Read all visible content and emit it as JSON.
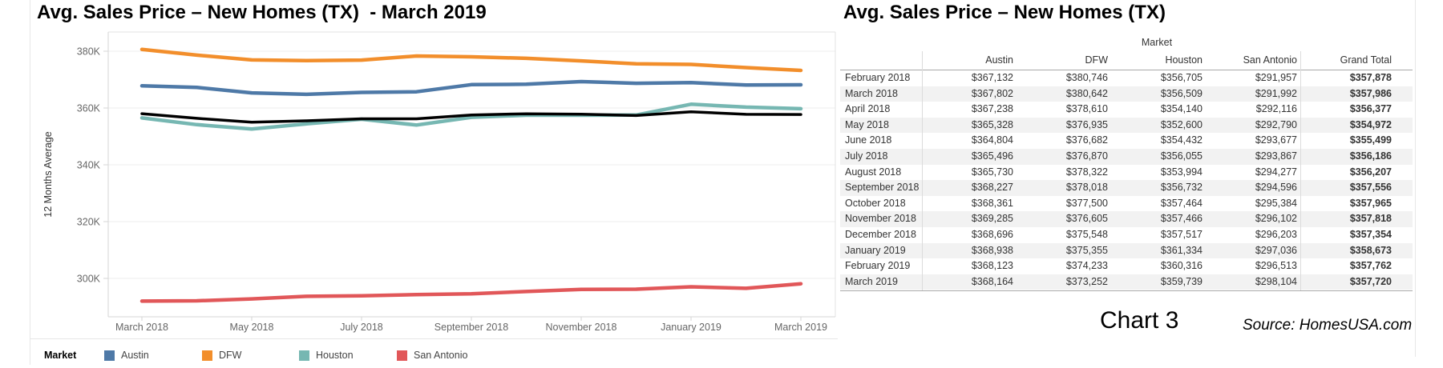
{
  "chart_data": [
    {
      "type": "line",
      "title": "Avg. Sales Price – New Homes (TX)  - March 2019",
      "ylabel": "12 Months Average",
      "x": [
        "March 2018",
        "April 2018",
        "May 2018",
        "June 2018",
        "July 2018",
        "August 2018",
        "September 2018",
        "October 2018",
        "November 2018",
        "December 2018",
        "January 2019",
        "February 2019",
        "March 2019"
      ],
      "x_tick_labels": [
        "March 2018",
        "May 2018",
        "July 2018",
        "September 2018",
        "November 2018",
        "January 2019",
        "March 2019"
      ],
      "y_ticks": [
        {
          "label": "300K",
          "value": 300000
        },
        {
          "label": "320K",
          "value": 320000
        },
        {
          "label": "340K",
          "value": 340000
        },
        {
          "label": "360K",
          "value": 360000
        },
        {
          "label": "380K",
          "value": 380000
        }
      ],
      "ylim": [
        286000,
        388000
      ],
      "grid": true,
      "legend_position": "bottom",
      "legend_title": "Market",
      "series": [
        {
          "name": "Austin",
          "color": "#4e79a7",
          "in_legend": true,
          "values": [
            367802,
            367238,
            365328,
            364804,
            365496,
            365730,
            368227,
            368361,
            369285,
            368696,
            368938,
            368123,
            368164
          ]
        },
        {
          "name": "DFW",
          "color": "#f28e2b",
          "in_legend": true,
          "values": [
            380642,
            378610,
            376935,
            376682,
            376870,
            378322,
            378018,
            377500,
            376605,
            375548,
            375355,
            374233,
            373252
          ]
        },
        {
          "name": "Houston",
          "color": "#76b7b2",
          "in_legend": true,
          "values": [
            356509,
            354140,
            352600,
            354432,
            356055,
            353994,
            356732,
            357464,
            357466,
            357517,
            361334,
            360316,
            359739
          ]
        },
        {
          "name": "San Antonio",
          "color": "#e15759",
          "in_legend": true,
          "values": [
            291992,
            292116,
            292790,
            293677,
            293867,
            294277,
            294596,
            295384,
            296102,
            296203,
            297036,
            296513,
            298104
          ]
        },
        {
          "name": "Grand Total",
          "color": "#000000",
          "in_legend": false,
          "values": [
            357986,
            356377,
            354972,
            355499,
            356186,
            356207,
            357556,
            357965,
            357818,
            357354,
            358673,
            357762,
            357720
          ]
        }
      ]
    },
    {
      "type": "table",
      "title": "Avg. Sales Price – New Homes (TX)",
      "dimension_header": "Market",
      "columns": [
        "Austin",
        "DFW",
        "Houston",
        "San Antonio",
        "Grand Total"
      ],
      "rows": [
        {
          "month": "February 2018",
          "values": [
            "$367,132",
            "$380,746",
            "$356,705",
            "$291,957",
            "$357,878"
          ]
        },
        {
          "month": "March 2018",
          "values": [
            "$367,802",
            "$380,642",
            "$356,509",
            "$291,992",
            "$357,986"
          ]
        },
        {
          "month": "April 2018",
          "values": [
            "$367,238",
            "$378,610",
            "$354,140",
            "$292,116",
            "$356,377"
          ]
        },
        {
          "month": "May 2018",
          "values": [
            "$365,328",
            "$376,935",
            "$352,600",
            "$292,790",
            "$354,972"
          ]
        },
        {
          "month": "June 2018",
          "values": [
            "$364,804",
            "$376,682",
            "$354,432",
            "$293,677",
            "$355,499"
          ]
        },
        {
          "month": "July 2018",
          "values": [
            "$365,496",
            "$376,870",
            "$356,055",
            "$293,867",
            "$356,186"
          ]
        },
        {
          "month": "August 2018",
          "values": [
            "$365,730",
            "$378,322",
            "$353,994",
            "$294,277",
            "$356,207"
          ]
        },
        {
          "month": "September 2018",
          "values": [
            "$368,227",
            "$378,018",
            "$356,732",
            "$294,596",
            "$357,556"
          ]
        },
        {
          "month": "October 2018",
          "values": [
            "$368,361",
            "$377,500",
            "$357,464",
            "$295,384",
            "$357,965"
          ]
        },
        {
          "month": "November 2018",
          "values": [
            "$369,285",
            "$376,605",
            "$357,466",
            "$296,102",
            "$357,818"
          ]
        },
        {
          "month": "December 2018",
          "values": [
            "$368,696",
            "$375,548",
            "$357,517",
            "$296,203",
            "$357,354"
          ]
        },
        {
          "month": "January 2019",
          "values": [
            "$368,938",
            "$375,355",
            "$361,334",
            "$297,036",
            "$358,673"
          ]
        },
        {
          "month": "February 2019",
          "values": [
            "$368,123",
            "$374,233",
            "$360,316",
            "$296,513",
            "$357,762"
          ]
        },
        {
          "month": "March 2019",
          "values": [
            "$368,164",
            "$373,252",
            "$359,739",
            "$298,104",
            "$357,720"
          ]
        }
      ]
    }
  ],
  "footer": {
    "chart_label": "Chart 3",
    "source": "Source: HomesUSA.com"
  }
}
